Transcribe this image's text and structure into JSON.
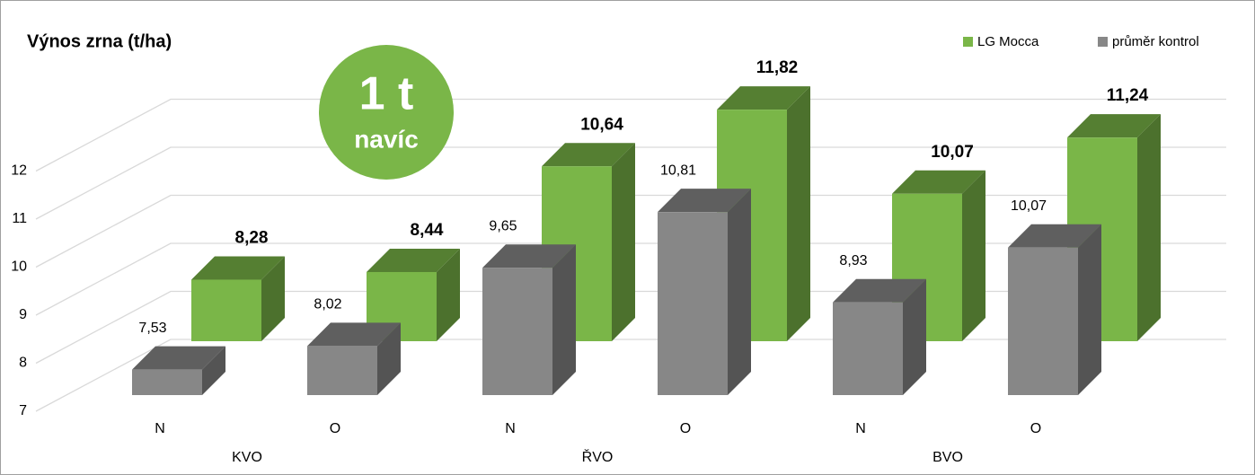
{
  "chart_data": {
    "type": "bar3d",
    "title": "Výnos zrna (t/ha)",
    "categories": [
      "N",
      "O",
      "N",
      "O",
      "N",
      "O"
    ],
    "groups": [
      "KVO",
      "ŘVO",
      "BVO"
    ],
    "series": [
      {
        "name": "LG Mocca",
        "color": "#7ab648",
        "values": [
          8.28,
          8.44,
          10.64,
          11.82,
          10.07,
          11.24
        ],
        "value_labels": [
          "8,28",
          "8,44",
          "10,64",
          "11,82",
          "10,07",
          "11,24"
        ]
      },
      {
        "name": "průměr kontrol",
        "color": "#878787",
        "values": [
          7.53,
          8.02,
          9.65,
          10.81,
          8.93,
          10.07
        ],
        "value_labels": [
          "7,53",
          "8,02",
          "9,65",
          "10,81",
          "8,93",
          "10,07"
        ]
      }
    ],
    "ylim": [
      7,
      13
    ],
    "yticks": [
      7,
      8,
      9,
      10,
      11,
      12
    ],
    "grid": true,
    "annotation": {
      "line1": "1 t",
      "line2": "navíc",
      "color": "#7ab648"
    }
  }
}
